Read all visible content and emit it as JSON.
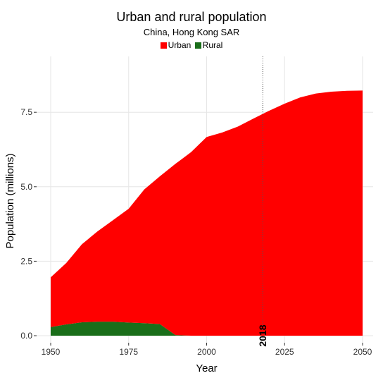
{
  "chart_data": {
    "type": "area",
    "title": "Urban and rural population",
    "subtitle": "China, Hong Kong SAR",
    "xlabel": "Year",
    "ylabel": "Population (millions)",
    "xlim": [
      1950,
      2050
    ],
    "ylim": [
      0,
      9.3
    ],
    "x_ticks": [
      "1950",
      "1975",
      "2000",
      "2025",
      "2050"
    ],
    "y_ticks": [
      "0.0",
      "2.5",
      "5.0",
      "7.5"
    ],
    "grid": true,
    "legend_position": "top",
    "stacked": true,
    "x": [
      1950,
      1955,
      1960,
      1965,
      1970,
      1975,
      1980,
      1985,
      1990,
      1995,
      2000,
      2005,
      2010,
      2015,
      2020,
      2025,
      2030,
      2035,
      2040,
      2045,
      2050
    ],
    "series": [
      {
        "name": "Rural",
        "color": "#1a6e1a",
        "values": [
          0.29,
          0.38,
          0.45,
          0.47,
          0.47,
          0.44,
          0.42,
          0.39,
          0.02,
          0.0,
          0.0,
          0.0,
          0.0,
          0.0,
          0.0,
          0.0,
          0.0,
          0.0,
          0.0,
          0.0,
          0.0
        ]
      },
      {
        "name": "Urban",
        "color": "#ff0000",
        "values": [
          1.67,
          2.06,
          2.62,
          3.03,
          3.41,
          3.82,
          4.49,
          4.96,
          5.75,
          6.16,
          6.67,
          6.82,
          7.02,
          7.29,
          7.55,
          7.79,
          8.0,
          8.13,
          8.19,
          8.22,
          8.23
        ]
      }
    ],
    "annotation": {
      "x": 2018,
      "label": "2018"
    }
  }
}
